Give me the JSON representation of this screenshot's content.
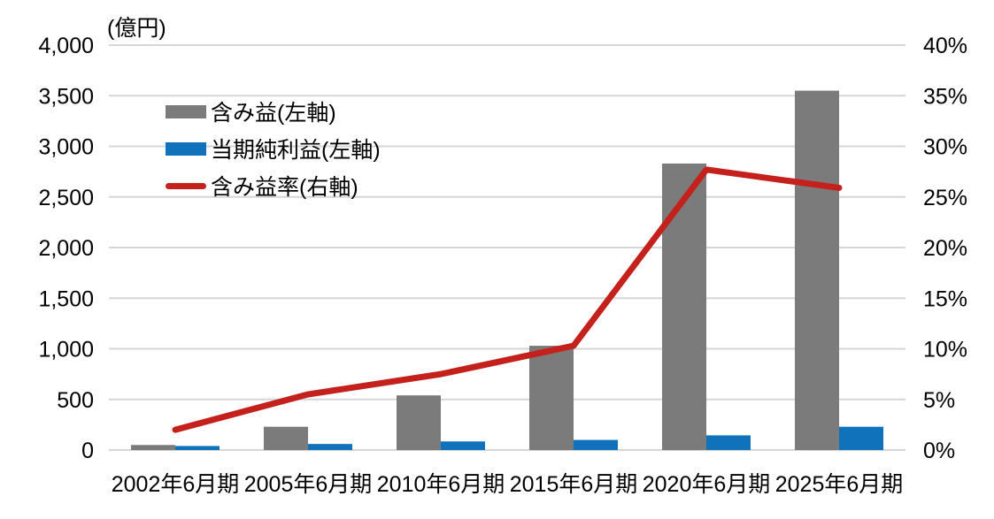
{
  "chart_data": {
    "type": "combo-bar-line",
    "background": "#ffffff",
    "grid": true,
    "gridline_color": "#d6d6d6",
    "legend_position": "inside-top-left",
    "left_axis": {
      "unit_label": "(億円)",
      "min": 0,
      "max": 4000,
      "tick_step": 500,
      "tick_labels": [
        "0",
        "500",
        "1,000",
        "1,500",
        "2,000",
        "2,500",
        "3,000",
        "3,500",
        "4,000"
      ]
    },
    "right_axis": {
      "min": 0,
      "max": 40,
      "tick_step": 5,
      "tick_labels": [
        "0%",
        "5%",
        "10%",
        "15%",
        "20%",
        "25%",
        "30%",
        "35%",
        "40%"
      ]
    },
    "categories": [
      "2002年6月期",
      "2005年6月期",
      "2010年6月期",
      "2015年6月期",
      "2020年6月期",
      "2025年6月期"
    ],
    "series": [
      {
        "name": "含み益(左軸)",
        "type": "bar",
        "axis": "left",
        "color": "#7b7b7b",
        "values": [
          50,
          230,
          540,
          1030,
          2830,
          3550
        ]
      },
      {
        "name": "当期純利益(左軸)",
        "type": "bar",
        "axis": "left",
        "color": "#1072ba",
        "values": [
          40,
          60,
          85,
          100,
          145,
          230
        ]
      },
      {
        "name": "含み益率(右軸)",
        "type": "line",
        "axis": "right",
        "color": "#c4211c",
        "values": [
          2.0,
          5.5,
          7.5,
          10.3,
          27.7,
          25.9
        ]
      }
    ]
  }
}
